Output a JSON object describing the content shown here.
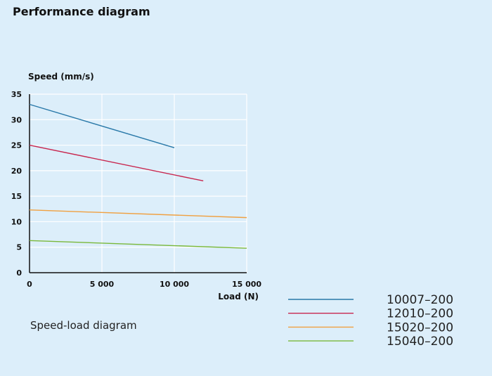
{
  "page": {
    "title": "Performance diagram",
    "caption": "Speed-load diagram"
  },
  "chart_data": {
    "type": "line",
    "title": "Performance diagram",
    "xlabel": "Load (N)",
    "ylabel": "Speed (mm/s)",
    "xlim": [
      0,
      15000
    ],
    "ylim": [
      0,
      35
    ],
    "xticks": [
      0,
      5000,
      10000,
      15000
    ],
    "xtick_labels": [
      "0",
      "5 000",
      "10 000",
      "15 000"
    ],
    "yticks": [
      0,
      5,
      10,
      15,
      20,
      25,
      30,
      35
    ],
    "ytick_labels": [
      "0",
      "5",
      "10",
      "15",
      "20",
      "25",
      "30",
      "35"
    ],
    "grid": true,
    "legend_position": "bottom-right",
    "series": [
      {
        "name": "10007–200",
        "color": "#2878a8",
        "x": [
          0,
          10000
        ],
        "y": [
          33,
          24.5
        ]
      },
      {
        "name": "12010–200",
        "color": "#c8264e",
        "x": [
          0,
          12000
        ],
        "y": [
          25,
          18
        ]
      },
      {
        "name": "15020–200",
        "color": "#f0a040",
        "x": [
          0,
          15000
        ],
        "y": [
          12.3,
          10.8
        ]
      },
      {
        "name": "15040–200",
        "color": "#7ab83a",
        "x": [
          0,
          15000
        ],
        "y": [
          6.3,
          4.8
        ]
      }
    ]
  }
}
